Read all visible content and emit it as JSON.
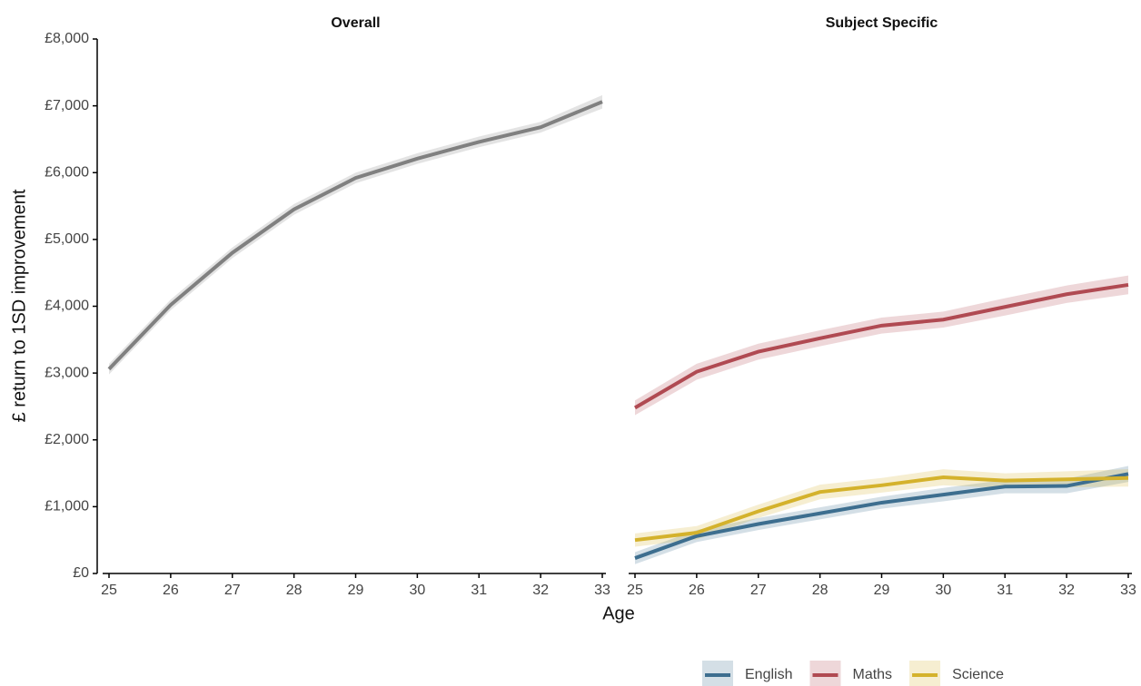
{
  "chart_data": [
    {
      "type": "line",
      "title": "Overall",
      "ylabel": "£ return to 1SD improvement",
      "xlabel": "Age",
      "x": [
        25,
        26,
        27,
        28,
        29,
        30,
        31,
        32,
        33
      ],
      "xlim": [
        25,
        33
      ],
      "xticks": [
        25,
        26,
        27,
        28,
        29,
        30,
        31,
        32,
        33
      ],
      "ylim": [
        0,
        8000
      ],
      "yticks": [
        {
          "value": 0,
          "label": "£0"
        },
        {
          "value": 1000,
          "label": "£1,000"
        },
        {
          "value": 2000,
          "label": "£2,000"
        },
        {
          "value": 3000,
          "label": "£3,000"
        },
        {
          "value": 4000,
          "label": "£4,000"
        },
        {
          "value": 5000,
          "label": "£5,000"
        },
        {
          "value": 6000,
          "label": "£6,000"
        },
        {
          "value": 7000,
          "label": "£7,000"
        },
        {
          "value": 8000,
          "label": "£8,000"
        }
      ],
      "series": [
        {
          "color": "#808080",
          "values": [
            3060,
            4020,
            4800,
            5450,
            5920,
            6210,
            6460,
            6680,
            7060
          ],
          "lower": [
            2980,
            3940,
            4720,
            5370,
            5840,
            6130,
            6380,
            6600,
            6960
          ],
          "upper": [
            3140,
            4100,
            4880,
            5530,
            6000,
            6290,
            6540,
            6760,
            7160
          ]
        }
      ]
    },
    {
      "type": "line",
      "title": "Subject Specific",
      "legend": "bottom",
      "x": [
        25,
        26,
        27,
        28,
        29,
        30,
        31,
        32,
        33
      ],
      "xlim": [
        25,
        33
      ],
      "xticks": [
        25,
        26,
        27,
        28,
        29,
        30,
        31,
        32,
        33
      ],
      "ylim": [
        0,
        8000
      ],
      "series": [
        {
          "name": "English",
          "color": "#3d6e8f",
          "values": [
            230,
            560,
            740,
            900,
            1060,
            1180,
            1300,
            1310,
            1490
          ],
          "lower": [
            140,
            470,
            650,
            810,
            970,
            1080,
            1200,
            1200,
            1370
          ],
          "upper": [
            320,
            650,
            830,
            990,
            1150,
            1280,
            1400,
            1420,
            1610
          ]
        },
        {
          "name": "Maths",
          "color": "#b04a52",
          "values": [
            2480,
            3020,
            3320,
            3520,
            3710,
            3800,
            3990,
            4180,
            4320
          ],
          "lower": [
            2370,
            2900,
            3200,
            3400,
            3590,
            3680,
            3860,
            4050,
            4180
          ],
          "upper": [
            2590,
            3140,
            3440,
            3640,
            3830,
            3920,
            4120,
            4310,
            4460
          ]
        },
        {
          "name": "Science",
          "color": "#d4b22c",
          "values": [
            500,
            610,
            930,
            1220,
            1320,
            1440,
            1390,
            1410,
            1430
          ],
          "lower": [
            400,
            510,
            830,
            1110,
            1210,
            1320,
            1280,
            1290,
            1300
          ],
          "upper": [
            600,
            710,
            1030,
            1330,
            1430,
            1560,
            1500,
            1530,
            1560
          ]
        }
      ]
    }
  ]
}
